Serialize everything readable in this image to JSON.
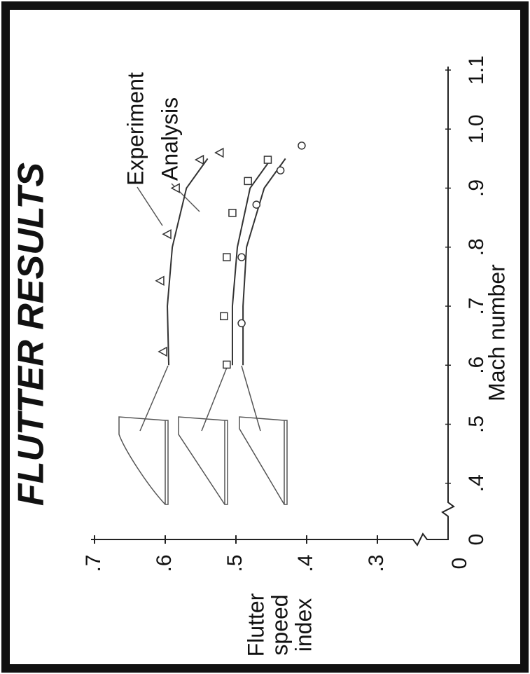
{
  "chart_data": {
    "type": "scatter",
    "title": "FLUTTER RESULTS",
    "x_label": "Mach number",
    "y_label": [
      "Flutter",
      "speed",
      "index"
    ],
    "x_origin_label": "0",
    "y_origin_label": "0",
    "xlim": [
      0.3,
      1.1
    ],
    "xticks": [
      {
        "value": 0.4,
        "label": ".4"
      },
      {
        "value": 0.5,
        "label": ".5"
      },
      {
        "value": 0.6,
        "label": ".6"
      },
      {
        "value": 0.7,
        "label": ".7"
      },
      {
        "value": 0.8,
        "label": ".8"
      },
      {
        "value": 0.9,
        "label": ".9"
      },
      {
        "value": 1.0,
        "label": "1.0"
      },
      1.1
    ],
    "ylim": [
      0.2,
      0.7
    ],
    "yticks": [
      {
        "value": 0.3,
        "label": ".3"
      },
      {
        "value": 0.4,
        "label": ".4"
      },
      {
        "value": 0.5,
        "label": ".5"
      },
      {
        "value": 0.6,
        "label": ".6"
      },
      {
        "value": 0.7,
        "label": ".7"
      }
    ],
    "color": "#333333",
    "experiment": {
      "label": "Experiment",
      "series": [
        {
          "marker": "triangle",
          "x": [
            0.623,
            0.743,
            0.822,
            0.9,
            0.948,
            0.96
          ],
          "values": [
            0.603,
            0.607,
            0.597,
            0.585,
            0.551,
            0.523
          ]
        },
        {
          "marker": "square",
          "x": [
            0.601,
            0.683,
            0.783,
            0.858,
            0.912,
            0.948
          ],
          "values": [
            0.513,
            0.517,
            0.513,
            0.505,
            0.483,
            0.455
          ]
        },
        {
          "marker": "circle",
          "x": [
            0.671,
            0.783,
            0.872,
            0.93,
            0.972
          ],
          "values": [
            0.492,
            0.492,
            0.471,
            0.437,
            0.407
          ]
        }
      ]
    },
    "analysis": {
      "label": "Analysis",
      "series": [
        {
          "x": [
            0.6,
            0.7,
            0.8,
            0.9,
            0.95
          ],
          "values": [
            0.595,
            0.597,
            0.59,
            0.57,
            0.54
          ]
        },
        {
          "x": [
            0.6,
            0.7,
            0.8,
            0.9,
            0.95
          ],
          "values": [
            0.505,
            0.505,
            0.498,
            0.48,
            0.45
          ]
        },
        {
          "x": [
            0.6,
            0.7,
            0.8,
            0.9,
            0.95
          ],
          "values": [
            0.49,
            0.49,
            0.485,
            0.46,
            0.43
          ]
        }
      ]
    }
  }
}
